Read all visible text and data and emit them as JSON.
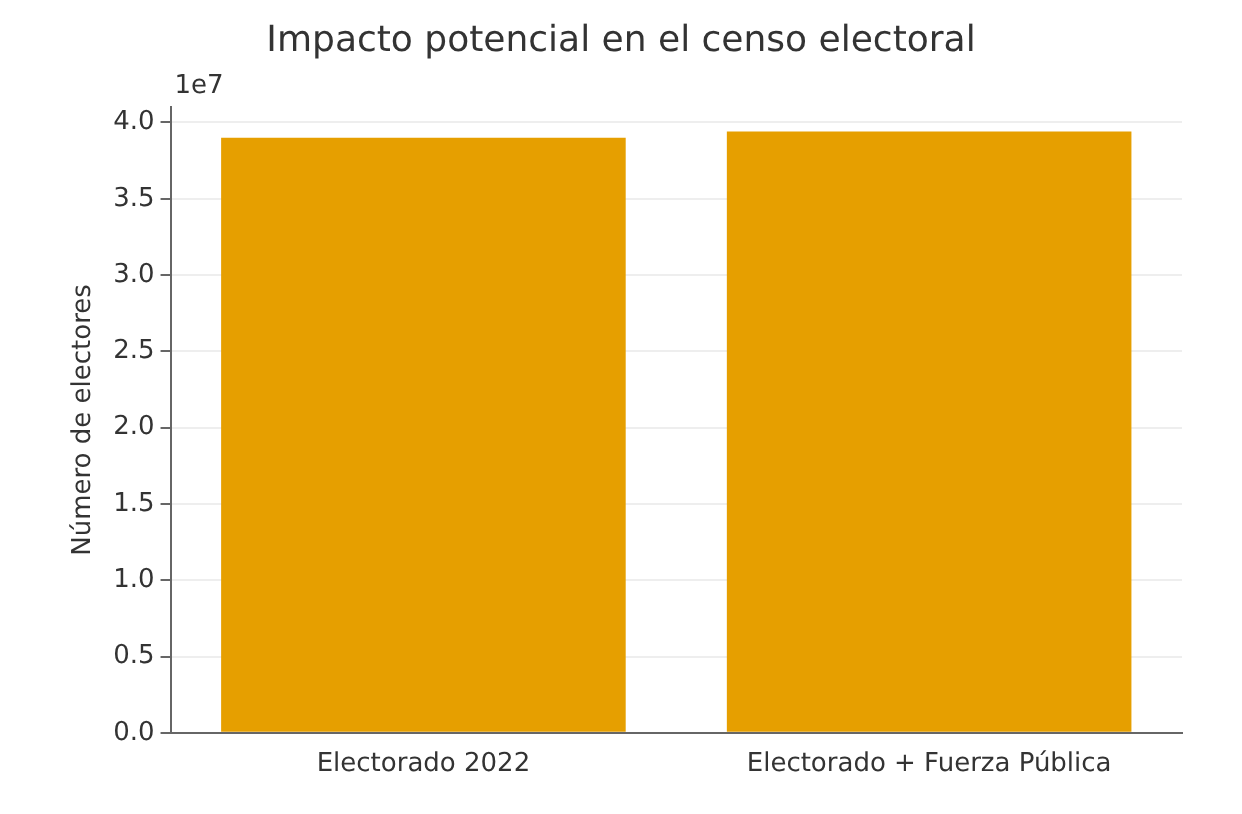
{
  "chart_data": {
    "type": "bar",
    "title": "Impacto potencial en el censo electoral",
    "ylabel": "Número de electores",
    "categories": [
      "Electorado 2022",
      "Electorado + Fuerza Pública"
    ],
    "values": [
      3.9,
      3.94
    ],
    "color": "#e69f00",
    "ylim": [
      0,
      4.1
    ],
    "yticks": [
      {
        "value": 0,
        "label": "0.0"
      },
      0.5,
      {
        "value": 1,
        "label": "1.0"
      },
      1.5,
      {
        "value": 2,
        "label": "2.0"
      },
      2.5,
      {
        "value": 3,
        "label": "3.0"
      },
      3.5,
      {
        "value": 4,
        "label": "4.0"
      }
    ],
    "annotations": [
      "1e7"
    ],
    "grid": "y",
    "legend": false
  }
}
